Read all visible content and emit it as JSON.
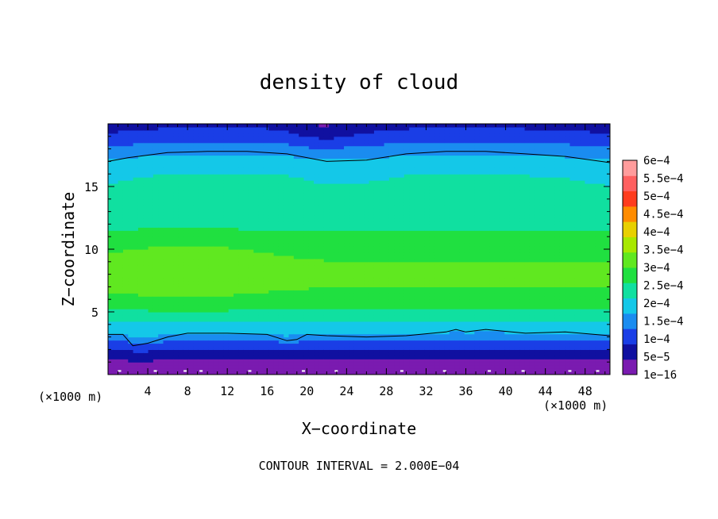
{
  "chart_data": {
    "type": "heatmap",
    "title": "density of cloud",
    "xlabel": "X−coordinate",
    "ylabel": "Z−coordinate",
    "x_unit_left": "(×1000 m)",
    "x_unit_right": "(×1000 m)",
    "footer": "CONTOUR INTERVAL = 2.000E−04",
    "xlim": [
      0,
      50.5
    ],
    "ylim": [
      0,
      20
    ],
    "x_ticks": [
      4,
      8,
      12,
      16,
      20,
      24,
      28,
      32,
      36,
      40,
      44,
      48
    ],
    "y_ticks": [
      5,
      10,
      15
    ],
    "x_tick_labels": [
      "4",
      "8",
      "12",
      "16",
      "20",
      "24",
      "28",
      "32",
      "36",
      "40",
      "44",
      "48"
    ],
    "y_tick_labels": [
      "5",
      "10",
      "15"
    ],
    "colorbar": {
      "levels": [
        1e-16,
        5e-05,
        0.0001,
        0.00015,
        0.0002,
        0.00025,
        0.0003,
        0.00035,
        0.0004,
        0.00045,
        0.0005,
        0.00055,
        0.0006
      ],
      "labels": [
        "1e−16",
        "5e−5",
        "1e−4",
        "1.5e−4",
        "2e−4",
        "2.5e−4",
        "3e−4",
        "3.5e−4",
        "4e−4",
        "4.5e−4",
        "5e−4",
        "5.5e−4",
        "6e−4"
      ],
      "colors": [
        "#7a1bb0",
        "#1010a0",
        "#1a3ee6",
        "#1a8cf0",
        "#14c8e8",
        "#10e0a0",
        "#20e040",
        "#60e820",
        "#a8e800",
        "#e8d000",
        "#ff8c00",
        "#ff3c1e",
        "#ff6060",
        "#ff9c9c"
      ]
    },
    "z_levels": [
      0.5,
      1.0,
      1.5,
      2.0,
      2.5,
      3.0,
      4.0,
      5.0,
      6.0,
      7.0,
      8.0,
      9.0,
      10.0,
      11.0,
      12.0,
      13.0,
      14.0,
      15.0,
      16.0,
      17.0,
      17.5,
      18.0,
      18.5,
      19.0,
      19.5,
      20.0
    ],
    "profile": [
      3e-05,
      6e-05,
      9e-05,
      0.00012,
      0.00015,
      0.00018,
      0.00024,
      0.00029,
      0.00033,
      0.00035,
      0.000355,
      0.00035,
      0.000335,
      0.00031,
      0.000285,
      0.00027,
      0.000265,
      0.00026,
      0.000245,
      0.000215,
      0.000195,
      0.00017,
      0.000145,
      0.00012,
      0.0001,
      8.5e-05
    ],
    "contour_lines": [
      {
        "level": "2e−4",
        "x": [
          0,
          2,
          6,
          10,
          14,
          18,
          22,
          26,
          30,
          34,
          38,
          42,
          46,
          50.5
        ],
        "z": [
          17.0,
          17.3,
          17.7,
          17.8,
          17.8,
          17.6,
          17.0,
          17.1,
          17.6,
          17.8,
          17.8,
          17.6,
          17.4,
          16.9
        ]
      },
      {
        "level": "1e−4",
        "x": [
          0,
          1.5,
          2.5,
          4,
          6,
          8,
          12,
          16,
          18,
          19,
          20,
          22,
          26,
          30,
          34,
          35,
          36,
          38,
          42,
          46,
          50.5
        ],
        "z": [
          3.2,
          3.2,
          2.3,
          2.5,
          3.0,
          3.3,
          3.3,
          3.2,
          2.7,
          2.8,
          3.2,
          3.1,
          3.0,
          3.1,
          3.4,
          3.6,
          3.4,
          3.6,
          3.3,
          3.4,
          3.1
        ]
      }
    ]
  }
}
